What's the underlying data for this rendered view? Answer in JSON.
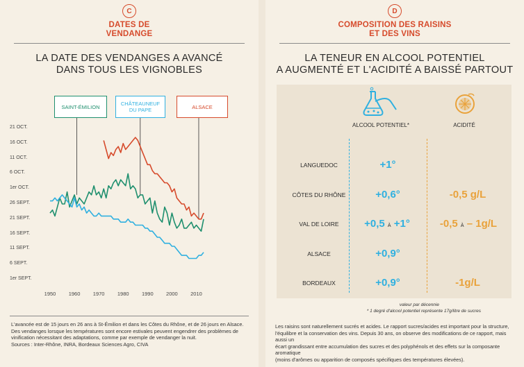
{
  "panel_c": {
    "badge": "C",
    "title_line1": "DATES DE",
    "title_line2": "VENDANGE",
    "headline_line1": "LA DATE DES VENDANGES A AVANCÉ",
    "headline_line2": "DANS TOUS LES VIGNOBLES",
    "callouts": {
      "saint_emilion": "SAINT-ÉMILION",
      "chateauneuf_line1": "CHÂTEAUNEUF",
      "chateauneuf_line2": "DU PAPE",
      "alsace": "ALSACE"
    },
    "footnote": [
      "L'avancée est de 15 jours en 26 ans à St-Émilion et dans les Côtes du Rhône, et de 26 jours en Alsace.",
      "Des vendanges lorsque les températures sont encore estivales peuvent engendrer des problèmes de",
      "vinification nécessitant des adaptations, comme par exemple de vendanger la nuit.",
      "Sources : Inter-Rhône, INRA, Bordeaux Sciences Agro, CIVA"
    ]
  },
  "chart_data": {
    "type": "line",
    "title": "LA DATE DES VENDANGES A AVANCÉ DANS TOUS LES VIGNOBLES",
    "xlabel": "",
    "ylabel": "",
    "y_ticks": [
      "21 OCT.",
      "16 OCT.",
      "11 OCT.",
      "6 OCT.",
      "1er OCT.",
      "26 SEPT.",
      "21 SEPT.",
      "16 SEPT.",
      "11 SEPT.",
      "6 SEPT.",
      "1er SEPT."
    ],
    "x_ticks": [
      1950,
      1960,
      1970,
      1980,
      1990,
      2000,
      2010
    ],
    "xlim": [
      1950,
      2015
    ],
    "ylim_days_after_sept1": [
      0,
      50
    ],
    "grid": false,
    "series": [
      {
        "name": "SAINT-ÉMILION",
        "color": "#1e8f6e",
        "x": [
          1950,
          1951,
          1952,
          1953,
          1954,
          1955,
          1956,
          1957,
          1958,
          1959,
          1960,
          1961,
          1962,
          1963,
          1964,
          1965,
          1966,
          1967,
          1968,
          1969,
          1970,
          1971,
          1972,
          1973,
          1974,
          1975,
          1976,
          1977,
          1978,
          1979,
          1980,
          1981,
          1982,
          1983,
          1984,
          1985,
          1986,
          1987,
          1988,
          1989,
          1990,
          1991,
          1992,
          1993,
          1994,
          1995,
          1996,
          1997,
          1998,
          1999,
          2000,
          2001,
          2002,
          2003,
          2004,
          2005,
          2006,
          2007,
          2008,
          2009,
          2010,
          2011,
          2012,
          2013
        ],
        "values": [
          22,
          23,
          21,
          24,
          27,
          25,
          25,
          29,
          24,
          26,
          28,
          25,
          27,
          26,
          25,
          27,
          29,
          28,
          31,
          28,
          29,
          27,
          30,
          27,
          31,
          30,
          32,
          33,
          31,
          33,
          32,
          31,
          35,
          30,
          31,
          30,
          27,
          28,
          28,
          25,
          26,
          27,
          22,
          26,
          22,
          20,
          19,
          24,
          22,
          18,
          22,
          19,
          17,
          18,
          20,
          17,
          17,
          18,
          19,
          17,
          18,
          17,
          16,
          20
        ]
      },
      {
        "name": "CHÂTEAUNEUF DU PAPE",
        "color": "#2fb0e0",
        "x": [
          1950,
          1951,
          1952,
          1953,
          1954,
          1955,
          1956,
          1957,
          1958,
          1959,
          1960,
          1961,
          1962,
          1963,
          1964,
          1965,
          1966,
          1967,
          1968,
          1969,
          1970,
          1971,
          1972,
          1973,
          1974,
          1975,
          1976,
          1977,
          1978,
          1979,
          1980,
          1981,
          1982,
          1983,
          1984,
          1985,
          1986,
          1987,
          1988,
          1989,
          1990,
          1991,
          1992,
          1993,
          1994,
          1995,
          1996,
          1997,
          1998,
          1999,
          2000,
          2001,
          2002,
          2003,
          2004,
          2005,
          2006,
          2007,
          2008,
          2009,
          2010,
          2011,
          2012,
          2013
        ],
        "values": [
          26,
          26,
          27,
          26,
          27,
          28,
          27,
          26,
          25,
          24,
          27,
          24,
          25,
          23,
          24,
          22,
          23,
          22,
          21,
          21,
          22,
          21,
          21,
          21,
          21,
          21,
          20,
          20,
          20,
          19,
          19,
          19,
          20,
          19,
          19,
          18,
          18,
          18,
          18,
          17,
          17,
          16,
          16,
          15,
          14,
          14,
          13,
          12,
          12,
          12,
          11,
          11,
          10,
          9,
          8,
          8,
          8,
          7,
          7,
          7,
          7,
          8,
          8,
          9
        ]
      },
      {
        "name": "ALSACE",
        "color": "#d64a2b",
        "x": [
          1972,
          1973,
          1974,
          1975,
          1976,
          1977,
          1978,
          1979,
          1980,
          1981,
          1982,
          1983,
          1984,
          1985,
          1986,
          1987,
          1988,
          1989,
          1990,
          1991,
          1992,
          1993,
          1994,
          1995,
          1996,
          1997,
          1998,
          1999,
          2000,
          2001,
          2002,
          2003,
          2004,
          2005,
          2006,
          2007,
          2008,
          2009,
          2010,
          2011,
          2012,
          2013
        ],
        "values": [
          46,
          43,
          40,
          42,
          41,
          43,
          44,
          42,
          45,
          43,
          44,
          45,
          46,
          47,
          46,
          44,
          42,
          40,
          38,
          38,
          36,
          35,
          35,
          34,
          33,
          32,
          32,
          31,
          29,
          30,
          27,
          26,
          25,
          25,
          23,
          24,
          21,
          22,
          21,
          20,
          20,
          22
        ]
      }
    ]
  },
  "panel_d": {
    "badge": "D",
    "title_line1": "COMPOSITION DES RAISINS",
    "title_line2": "ET DES VINS",
    "headline_line1": "LA TENEUR EN ALCOOL POTENTIEL",
    "headline_line2": "A AUGMENTÉ ET L'ACIDITÉ A BAISSÉ PARTOUT",
    "col_alcohol": "ALCOOL POTENTIEL*",
    "col_acid": "ACIDITÉ",
    "rows": [
      {
        "region": "LANGUEDOC",
        "alcohol": "+1°",
        "acid": ""
      },
      {
        "region": "CÔTES DU RHÔNE",
        "alcohol": "+0,6°",
        "acid": "-0,5 g/L"
      },
      {
        "region": "VAL DE LOIRE",
        "alcohol": "+0,5",
        "alcohol_joiner": "À",
        "alcohol2": "+1°",
        "acid": "-0,5",
        "acid_joiner": "À",
        "acid2": "– 1g/L"
      },
      {
        "region": "ALSACE",
        "alcohol": "+0,9°",
        "acid": ""
      },
      {
        "region": "BORDEAUX",
        "alcohol": "+0,9°",
        "acid": "-1g/L"
      }
    ],
    "note1": "valeur par décennie",
    "note2": "* 1 degré d'alcool potentiel représente 17g/litre de sucres",
    "footnote": [
      "Les raisins sont naturellement sucrés et acides. Le rapport sucres/acides est important pour la structure,",
      "l'équilibre et la conservation des vins. Depuis 30 ans, on observe des modifications de ce rapport, mais aussi un",
      "écart grandissant entre accumulation des sucres et des polyphénols et des effets sur la composante aromatique",
      "(moins d'arômes ou apparition de composés spécifiques des températures élevées)."
    ],
    "icons": {
      "alcohol": "flask-icon",
      "acid": "lemon-icon"
    },
    "colors": {
      "alcohol": "#2fb0e0",
      "acid": "#e9a23b",
      "accent": "#d64a2b"
    }
  }
}
